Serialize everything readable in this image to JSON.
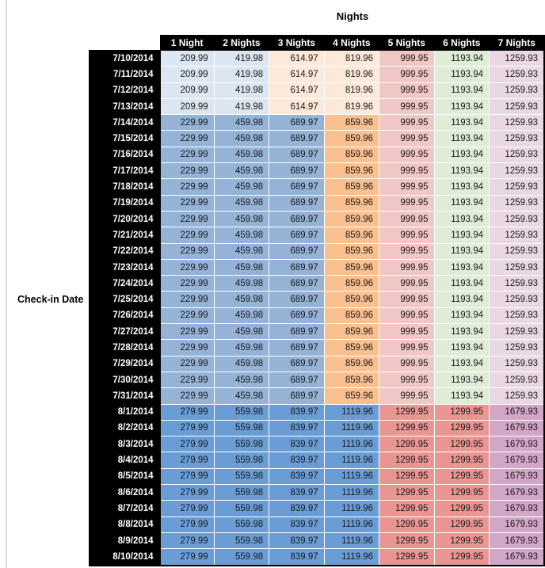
{
  "colors": {
    "header_bg": "#000000",
    "header_text": "#ffffff",
    "gridline": "#ffffff",
    "value_text": "#1a1a1a",
    "left_rule": "#d9d9d9",
    "light_blue": "#dce6f1",
    "medium_blue": "#95b3d7",
    "dark_blue": "#6a9dd5",
    "light_orange": "#fde9d9",
    "medium_orange": "#fac090",
    "rose": "#f0c7c5",
    "salmon": "#e99693",
    "green": "#dfecd7",
    "lavender": "#ead7e4",
    "mauve": "#d2a6c6"
  },
  "band_styles": {
    "early_july": [
      "light_blue",
      "light_blue",
      "light_orange",
      "light_orange",
      "rose",
      "green",
      "lavender"
    ],
    "mid_july": [
      "medium_blue",
      "medium_blue",
      "medium_blue",
      "medium_orange",
      "rose",
      "green",
      "lavender"
    ],
    "august": [
      "dark_blue",
      "dark_blue",
      "dark_blue",
      "dark_blue",
      "salmon",
      "salmon",
      "mauve"
    ]
  },
  "chart_data": {
    "type": "table",
    "title": "Nights",
    "row_label": "Check-in Date",
    "columns": [
      "1 Night",
      "2 Nights",
      "3 Nights",
      "4 Nights",
      "5 Nights",
      "6 Nights",
      "7 Nights"
    ],
    "rows": [
      {
        "date": "7/10/2014",
        "band": "early_july",
        "values": [
          209.99,
          419.98,
          614.97,
          819.96,
          999.95,
          1193.94,
          1259.93
        ]
      },
      {
        "date": "7/11/2014",
        "band": "early_july",
        "values": [
          209.99,
          419.98,
          614.97,
          819.96,
          999.95,
          1193.94,
          1259.93
        ]
      },
      {
        "date": "7/12/2014",
        "band": "early_july",
        "values": [
          209.99,
          419.98,
          614.97,
          819.96,
          999.95,
          1193.94,
          1259.93
        ]
      },
      {
        "date": "7/13/2014",
        "band": "early_july",
        "values": [
          209.99,
          419.98,
          614.97,
          819.96,
          999.95,
          1193.94,
          1259.93
        ]
      },
      {
        "date": "7/14/2014",
        "band": "mid_july",
        "values": [
          229.99,
          459.98,
          689.97,
          859.96,
          999.95,
          1193.94,
          1259.93
        ]
      },
      {
        "date": "7/15/2014",
        "band": "mid_july",
        "values": [
          229.99,
          459.98,
          689.97,
          859.96,
          999.95,
          1193.94,
          1259.93
        ]
      },
      {
        "date": "7/16/2014",
        "band": "mid_july",
        "values": [
          229.99,
          459.98,
          689.97,
          859.96,
          999.95,
          1193.94,
          1259.93
        ]
      },
      {
        "date": "7/17/2014",
        "band": "mid_july",
        "values": [
          229.99,
          459.98,
          689.97,
          859.96,
          999.95,
          1193.94,
          1259.93
        ]
      },
      {
        "date": "7/18/2014",
        "band": "mid_july",
        "values": [
          229.99,
          459.98,
          689.97,
          859.96,
          999.95,
          1193.94,
          1259.93
        ]
      },
      {
        "date": "7/19/2014",
        "band": "mid_july",
        "values": [
          229.99,
          459.98,
          689.97,
          859.96,
          999.95,
          1193.94,
          1259.93
        ]
      },
      {
        "date": "7/20/2014",
        "band": "mid_july",
        "values": [
          229.99,
          459.98,
          689.97,
          859.96,
          999.95,
          1193.94,
          1259.93
        ]
      },
      {
        "date": "7/21/2014",
        "band": "mid_july",
        "values": [
          229.99,
          459.98,
          689.97,
          859.96,
          999.95,
          1193.94,
          1259.93
        ]
      },
      {
        "date": "7/22/2014",
        "band": "mid_july",
        "values": [
          229.99,
          459.98,
          689.97,
          859.96,
          999.95,
          1193.94,
          1259.93
        ]
      },
      {
        "date": "7/23/2014",
        "band": "mid_july",
        "values": [
          229.99,
          459.98,
          689.97,
          859.96,
          999.95,
          1193.94,
          1259.93
        ]
      },
      {
        "date": "7/24/2014",
        "band": "mid_july",
        "values": [
          229.99,
          459.98,
          689.97,
          859.96,
          999.95,
          1193.94,
          1259.93
        ]
      },
      {
        "date": "7/25/2014",
        "band": "mid_july",
        "values": [
          229.99,
          459.98,
          689.97,
          859.96,
          999.95,
          1193.94,
          1259.93
        ]
      },
      {
        "date": "7/26/2014",
        "band": "mid_july",
        "values": [
          229.99,
          459.98,
          689.97,
          859.96,
          999.95,
          1193.94,
          1259.93
        ]
      },
      {
        "date": "7/27/2014",
        "band": "mid_july",
        "values": [
          229.99,
          459.98,
          689.97,
          859.96,
          999.95,
          1193.94,
          1259.93
        ]
      },
      {
        "date": "7/28/2014",
        "band": "mid_july",
        "values": [
          229.99,
          459.98,
          689.97,
          859.96,
          999.95,
          1193.94,
          1259.93
        ]
      },
      {
        "date": "7/29/2014",
        "band": "mid_july",
        "values": [
          229.99,
          459.98,
          689.97,
          859.96,
          999.95,
          1193.94,
          1259.93
        ]
      },
      {
        "date": "7/30/2014",
        "band": "mid_july",
        "values": [
          229.99,
          459.98,
          689.97,
          859.96,
          999.95,
          1193.94,
          1259.93
        ]
      },
      {
        "date": "7/31/2014",
        "band": "mid_july",
        "values": [
          229.99,
          459.98,
          689.97,
          859.96,
          999.95,
          1193.94,
          1259.93
        ]
      },
      {
        "date": "8/1/2014",
        "band": "august",
        "values": [
          279.99,
          559.98,
          839.97,
          1119.96,
          1299.95,
          1299.95,
          1679.93
        ]
      },
      {
        "date": "8/2/2014",
        "band": "august",
        "values": [
          279.99,
          559.98,
          839.97,
          1119.96,
          1299.95,
          1299.95,
          1679.93
        ]
      },
      {
        "date": "8/3/2014",
        "band": "august",
        "values": [
          279.99,
          559.98,
          839.97,
          1119.96,
          1299.95,
          1299.95,
          1679.93
        ]
      },
      {
        "date": "8/4/2014",
        "band": "august",
        "values": [
          279.99,
          559.98,
          839.97,
          1119.96,
          1299.95,
          1299.95,
          1679.93
        ]
      },
      {
        "date": "8/5/2014",
        "band": "august",
        "values": [
          279.99,
          559.98,
          839.97,
          1119.96,
          1299.95,
          1299.95,
          1679.93
        ]
      },
      {
        "date": "8/6/2014",
        "band": "august",
        "values": [
          279.99,
          559.98,
          839.97,
          1119.96,
          1299.95,
          1299.95,
          1679.93
        ]
      },
      {
        "date": "8/7/2014",
        "band": "august",
        "values": [
          279.99,
          559.98,
          839.97,
          1119.96,
          1299.95,
          1299.95,
          1679.93
        ]
      },
      {
        "date": "8/8/2014",
        "band": "august",
        "values": [
          279.99,
          559.98,
          839.97,
          1119.96,
          1299.95,
          1299.95,
          1679.93
        ]
      },
      {
        "date": "8/9/2014",
        "band": "august",
        "values": [
          279.99,
          559.98,
          839.97,
          1119.96,
          1299.95,
          1299.95,
          1679.93
        ]
      },
      {
        "date": "8/10/2014",
        "band": "august",
        "values": [
          279.99,
          559.98,
          839.97,
          1119.96,
          1299.95,
          1299.95,
          1679.93
        ]
      }
    ]
  }
}
